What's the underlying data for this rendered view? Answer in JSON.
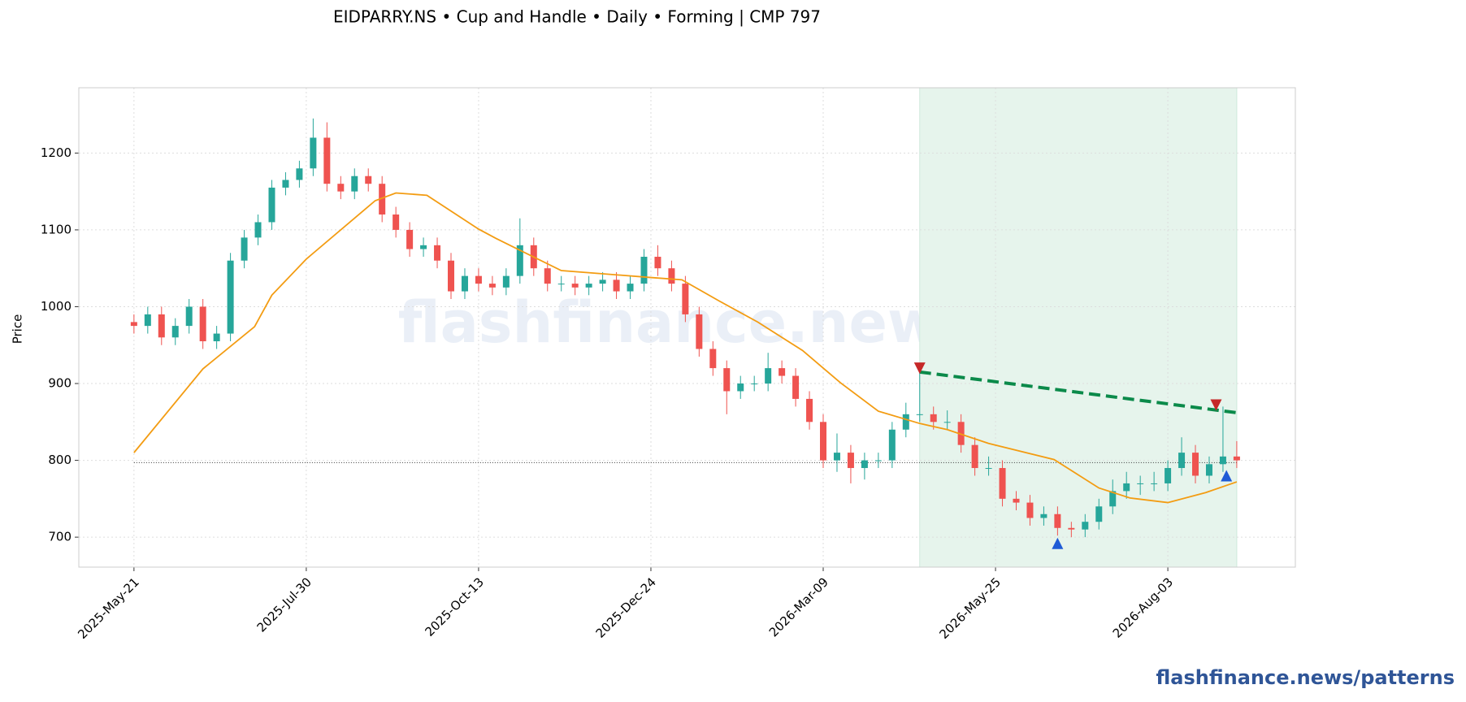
{
  "chart_data": {
    "type": "candlestick",
    "title": "EIDPARRY.NS  •  Cup and Handle  •  Daily  •  Forming  |  CMP 797",
    "y_label": "Price",
    "watermark": "flashfinance.news",
    "footer": "flashfinance.news/patterns",
    "xlim": [
      -16,
      337
    ],
    "ylim": [
      661,
      1285
    ],
    "xticks": [
      {
        "value": 0,
        "label": "2025-May-21"
      },
      {
        "value": 50,
        "label": "2025-Jul-30"
      },
      {
        "value": 100,
        "label": "2025-Oct-13"
      },
      {
        "value": 150,
        "label": "2025-Dec-24"
      },
      {
        "value": 200,
        "label": "2026-Mar-09"
      },
      {
        "value": 250,
        "label": "2026-May-25"
      },
      {
        "value": 300,
        "label": "2026-Aug-03"
      }
    ],
    "yticks": [
      700,
      800,
      900,
      1000,
      1100,
      1200
    ],
    "grid": true,
    "up_color": "#26a69a",
    "down_color": "#ef5350",
    "x": [
      0,
      4,
      8,
      12,
      16,
      20,
      24,
      28,
      32,
      36,
      40,
      44,
      48,
      52,
      56,
      60,
      64,
      68,
      72,
      76,
      80,
      84,
      88,
      92,
      96,
      100,
      104,
      108,
      112,
      116,
      120,
      124,
      128,
      132,
      136,
      140,
      144,
      148,
      152,
      156,
      160,
      164,
      168,
      172,
      176,
      180,
      184,
      188,
      192,
      196,
      200,
      204,
      208,
      212,
      216,
      220,
      224,
      228,
      232,
      236,
      240,
      244,
      248,
      252,
      256,
      260,
      264,
      268,
      272,
      276,
      280,
      284,
      288,
      292,
      296,
      300,
      304,
      308,
      312,
      316,
      320
    ],
    "open": [
      980,
      975,
      990,
      960,
      975,
      1000,
      955,
      965,
      1060,
      1090,
      1110,
      1155,
      1165,
      1180,
      1220,
      1160,
      1150,
      1170,
      1160,
      1120,
      1100,
      1075,
      1080,
      1060,
      1020,
      1040,
      1030,
      1025,
      1040,
      1080,
      1050,
      1030,
      1030,
      1025,
      1030,
      1035,
      1020,
      1030,
      1065,
      1050,
      1030,
      990,
      945,
      920,
      890,
      900,
      900,
      920,
      910,
      880,
      850,
      800,
      810,
      790,
      800,
      800,
      840,
      860,
      860,
      850,
      850,
      820,
      790,
      790,
      750,
      745,
      725,
      730,
      712,
      710,
      720,
      740,
      760,
      770,
      770,
      770,
      790,
      810,
      780,
      795,
      805
    ],
    "high": [
      990,
      1000,
      1000,
      985,
      1010,
      1010,
      975,
      1070,
      1100,
      1120,
      1165,
      1175,
      1190,
      1245,
      1240,
      1170,
      1180,
      1180,
      1170,
      1130,
      1110,
      1090,
      1090,
      1070,
      1050,
      1050,
      1040,
      1050,
      1115,
      1090,
      1060,
      1040,
      1040,
      1040,
      1045,
      1045,
      1040,
      1075,
      1080,
      1060,
      1040,
      1000,
      955,
      930,
      910,
      910,
      940,
      930,
      920,
      890,
      860,
      835,
      820,
      810,
      810,
      850,
      875,
      920,
      870,
      865,
      860,
      830,
      805,
      800,
      760,
      755,
      740,
      740,
      720,
      730,
      750,
      775,
      785,
      780,
      785,
      800,
      830,
      820,
      805,
      870,
      825
    ],
    "low": [
      965,
      965,
      950,
      950,
      965,
      945,
      945,
      955,
      1050,
      1080,
      1100,
      1145,
      1155,
      1170,
      1150,
      1140,
      1140,
      1150,
      1110,
      1090,
      1065,
      1065,
      1050,
      1010,
      1010,
      1020,
      1015,
      1015,
      1030,
      1040,
      1020,
      1020,
      1015,
      1015,
      1020,
      1010,
      1010,
      1020,
      1040,
      1020,
      980,
      935,
      910,
      860,
      880,
      890,
      890,
      900,
      870,
      840,
      790,
      785,
      770,
      775,
      790,
      790,
      830,
      850,
      840,
      840,
      810,
      780,
      780,
      740,
      735,
      715,
      715,
      702,
      700,
      700,
      710,
      730,
      750,
      755,
      760,
      760,
      780,
      770,
      770,
      785,
      790
    ],
    "close": [
      975,
      990,
      960,
      975,
      1000,
      955,
      965,
      1060,
      1090,
      1110,
      1155,
      1165,
      1180,
      1220,
      1160,
      1150,
      1170,
      1160,
      1120,
      1100,
      1075,
      1080,
      1060,
      1020,
      1040,
      1030,
      1025,
      1040,
      1080,
      1050,
      1030,
      1030,
      1025,
      1030,
      1035,
      1020,
      1030,
      1065,
      1050,
      1030,
      990,
      945,
      920,
      890,
      900,
      900,
      920,
      910,
      880,
      850,
      800,
      810,
      790,
      800,
      800,
      840,
      860,
      860,
      850,
      850,
      820,
      790,
      790,
      750,
      745,
      725,
      730,
      712,
      710,
      720,
      740,
      760,
      770,
      770,
      770,
      790,
      810,
      780,
      795,
      805,
      800
    ],
    "ma": {
      "color": "#f39c12",
      "x": [
        0,
        20,
        35,
        40,
        50,
        70,
        76,
        85,
        100,
        105,
        124,
        150,
        159,
        170,
        181,
        194,
        205,
        216,
        228,
        236,
        248,
        267,
        280,
        289,
        300,
        311,
        320
      ],
      "values": [
        810,
        919,
        974,
        1015,
        1062,
        1138,
        1148,
        1145,
        1101,
        1089,
        1047,
        1038,
        1035,
        1007,
        980,
        943,
        901,
        864,
        848,
        840,
        822,
        801,
        764,
        751,
        745,
        758,
        772
      ]
    },
    "cmp_line": {
      "value": 797,
      "x": [
        0,
        320
      ]
    },
    "pattern": {
      "shade": [
        228,
        320
      ],
      "shade_color": "#e6f4ec",
      "rim": {
        "color": "#0b8a4a",
        "x": [
          228,
          320
        ],
        "values": [
          915,
          862
        ]
      },
      "peaks": {
        "color": "#c62828",
        "x": [
          228,
          314
        ],
        "values": [
          920,
          872
        ]
      },
      "troughs": {
        "color": "#1f5bd6",
        "x": [
          268,
          317
        ],
        "values": [
          692,
          780
        ]
      }
    }
  }
}
